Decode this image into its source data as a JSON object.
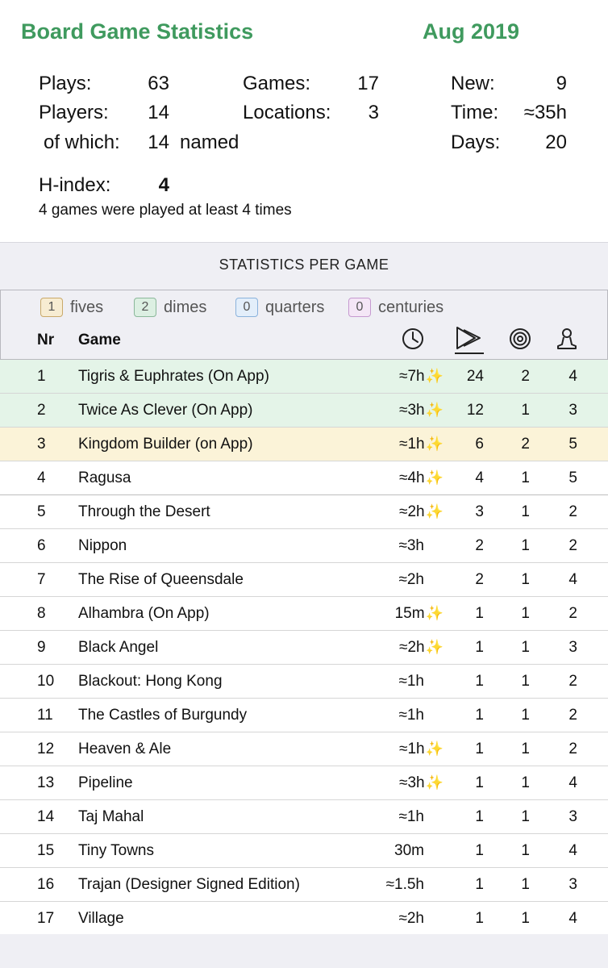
{
  "header": {
    "title": "Board Game Statistics",
    "month": "Aug 2019"
  },
  "summary": {
    "plays_label": "Plays:",
    "plays": "63",
    "games_label": "Games:",
    "games": "17",
    "new_label": "New:",
    "new": "9",
    "players_label": "Players:",
    "players": "14",
    "locations_label": "Locations:",
    "locations": "3",
    "time_label": "Time:",
    "time": "≈35h",
    "ofwhich_label": "of which:",
    "ofwhich": "14",
    "named_label": "named",
    "days_label": "Days:",
    "days": "20",
    "hindex_label": "H-index:",
    "hindex": "4",
    "hindex_note": "4 games were played at least 4 times"
  },
  "section_title": "STATISTICS PER GAME",
  "legend": [
    {
      "count": "1",
      "label": "fives",
      "color": "#c9a96a",
      "bg": "#f7ecd2"
    },
    {
      "count": "2",
      "label": "dimes",
      "color": "#8bb89a",
      "bg": "#dcefe2"
    },
    {
      "count": "0",
      "label": "quarters",
      "color": "#8ab2dc",
      "bg": "#e3eefa"
    },
    {
      "count": "0",
      "label": "centuries",
      "color": "#c69ad0",
      "bg": "#f4e6f6"
    }
  ],
  "columns": {
    "nr": "Nr",
    "game": "Game",
    "icons": [
      "clock-icon",
      "plays-icon",
      "target-icon",
      "player-icon"
    ]
  },
  "rows": [
    {
      "nr": "1",
      "game": "Tigris & Euphrates (On App)",
      "time": "≈7h",
      "spark": true,
      "plays": "24",
      "wins": "2",
      "players": "4",
      "bg": "#e4f4e8"
    },
    {
      "nr": "2",
      "game": "Twice As Clever (On App)",
      "time": "≈3h",
      "spark": true,
      "plays": "12",
      "wins": "1",
      "players": "3",
      "bg": "#e4f4e8"
    },
    {
      "nr": "3",
      "game": "Kingdom Builder (on App)",
      "time": "≈1h",
      "spark": true,
      "plays": "6",
      "wins": "2",
      "players": "5",
      "bg": "#fbf3d8"
    },
    {
      "nr": "4",
      "game": "Ragusa",
      "time": "≈4h",
      "spark": true,
      "plays": "4",
      "wins": "1",
      "players": "5",
      "bg": "#ffffff"
    },
    {
      "nr": "5",
      "game": "Through the Desert",
      "time": "≈2h",
      "spark": true,
      "plays": "3",
      "wins": "1",
      "players": "2",
      "bg": "#ffffff"
    },
    {
      "nr": "6",
      "game": "Nippon",
      "time": "≈3h",
      "spark": false,
      "plays": "2",
      "wins": "1",
      "players": "2",
      "bg": "#ffffff"
    },
    {
      "nr": "7",
      "game": "The Rise of Queensdale",
      "time": "≈2h",
      "spark": false,
      "plays": "2",
      "wins": "1",
      "players": "4",
      "bg": "#ffffff"
    },
    {
      "nr": "8",
      "game": "Alhambra (On App)",
      "time": "15m",
      "spark": true,
      "plays": "1",
      "wins": "1",
      "players": "2",
      "bg": "#ffffff"
    },
    {
      "nr": "9",
      "game": "Black Angel",
      "time": "≈2h",
      "spark": true,
      "plays": "1",
      "wins": "1",
      "players": "3",
      "bg": "#ffffff"
    },
    {
      "nr": "10",
      "game": "Blackout: Hong Kong",
      "time": "≈1h",
      "spark": false,
      "plays": "1",
      "wins": "1",
      "players": "2",
      "bg": "#ffffff"
    },
    {
      "nr": "11",
      "game": "The Castles of Burgundy",
      "time": "≈1h",
      "spark": false,
      "plays": "1",
      "wins": "1",
      "players": "2",
      "bg": "#ffffff"
    },
    {
      "nr": "12",
      "game": "Heaven & Ale",
      "time": "≈1h",
      "spark": true,
      "plays": "1",
      "wins": "1",
      "players": "2",
      "bg": "#ffffff"
    },
    {
      "nr": "13",
      "game": "Pipeline",
      "time": "≈3h",
      "spark": true,
      "plays": "1",
      "wins": "1",
      "players": "4",
      "bg": "#ffffff"
    },
    {
      "nr": "14",
      "game": "Taj Mahal",
      "time": "≈1h",
      "spark": false,
      "plays": "1",
      "wins": "1",
      "players": "3",
      "bg": "#ffffff"
    },
    {
      "nr": "15",
      "game": "Tiny Towns",
      "time": "30m",
      "spark": false,
      "plays": "1",
      "wins": "1",
      "players": "4",
      "bg": "#ffffff"
    },
    {
      "nr": "16",
      "game": "Trajan (Designer Signed Edition)",
      "time": "≈1.5h",
      "spark": false,
      "plays": "1",
      "wins": "1",
      "players": "3",
      "bg": "#ffffff"
    },
    {
      "nr": "17",
      "game": "Village",
      "time": "≈2h",
      "spark": false,
      "plays": "1",
      "wins": "1",
      "players": "4",
      "bg": "#ffffff"
    }
  ],
  "spark_glyph": "✨",
  "colors": {
    "title_green": "#3f9a5e",
    "sparkle": "#f3c52d"
  }
}
